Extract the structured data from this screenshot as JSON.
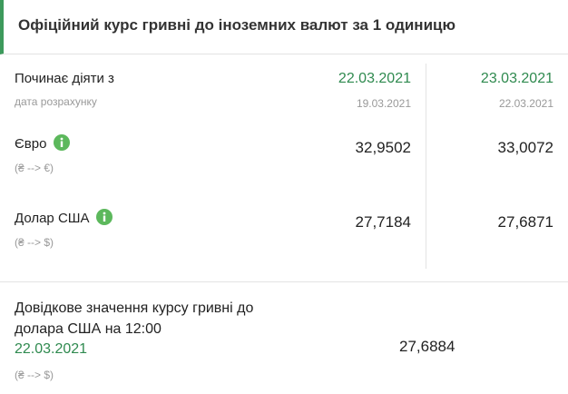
{
  "header": {
    "title": "Офіційний курс гривні до іноземних валют за 1 одиницю"
  },
  "table": {
    "start_label": "Починає діяти з",
    "calc_label": "дата розрахунку",
    "columns": [
      {
        "start_date": "22.03.2021",
        "calc_date": "19.03.2021"
      },
      {
        "start_date": "23.03.2021",
        "calc_date": "22.03.2021"
      }
    ],
    "rows": [
      {
        "name": "Євро",
        "direction": "(₴ --> €)",
        "values": [
          "32,9502",
          "33,0072"
        ]
      },
      {
        "name": "Долар США",
        "direction": "(₴ --> $)",
        "values": [
          "27,7184",
          "27,6871"
        ]
      }
    ]
  },
  "reference": {
    "label": "Довідкове значення курсу гривні до долара США на 12:00",
    "date": "22.03.2021",
    "direction": "(₴ --> $)",
    "value": "27,6884"
  }
}
